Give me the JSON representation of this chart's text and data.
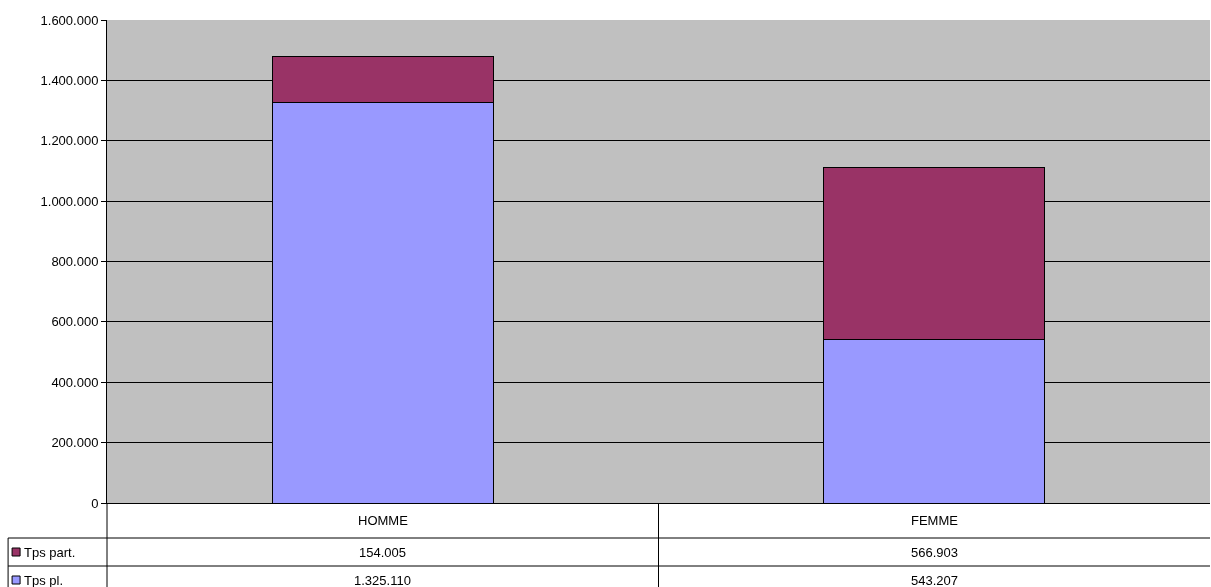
{
  "chart_data": {
    "type": "bar",
    "stacked": true,
    "categories": [
      "HOMME",
      "FEMME"
    ],
    "series": [
      {
        "name": "Tps pl.",
        "color": "#9999ff",
        "values": [
          1325110,
          543207
        ],
        "value_labels": [
          "1.325.110",
          "543.207"
        ]
      },
      {
        "name": "Tps part.",
        "color": "#993366",
        "values": [
          154005,
          566903
        ],
        "value_labels": [
          "154.005",
          "566.903"
        ]
      }
    ],
    "ylim": [
      0,
      1600000
    ],
    "yticks": [
      0,
      {
        "value": 200000,
        "label": "200.000"
      },
      {
        "value": 400000,
        "label": "400.000"
      },
      {
        "value": 600000,
        "label": "600.000"
      },
      {
        "value": 800000,
        "label": "800.000"
      },
      {
        "value": 1000000,
        "label": "1.000.000"
      },
      {
        "value": 1200000,
        "label": "1.200.000"
      },
      {
        "value": 1400000,
        "label": "1.400.000"
      },
      {
        "value": 1600000,
        "label": "1.600.000"
      }
    ],
    "grid": "y",
    "legend": "bottom left"
  }
}
